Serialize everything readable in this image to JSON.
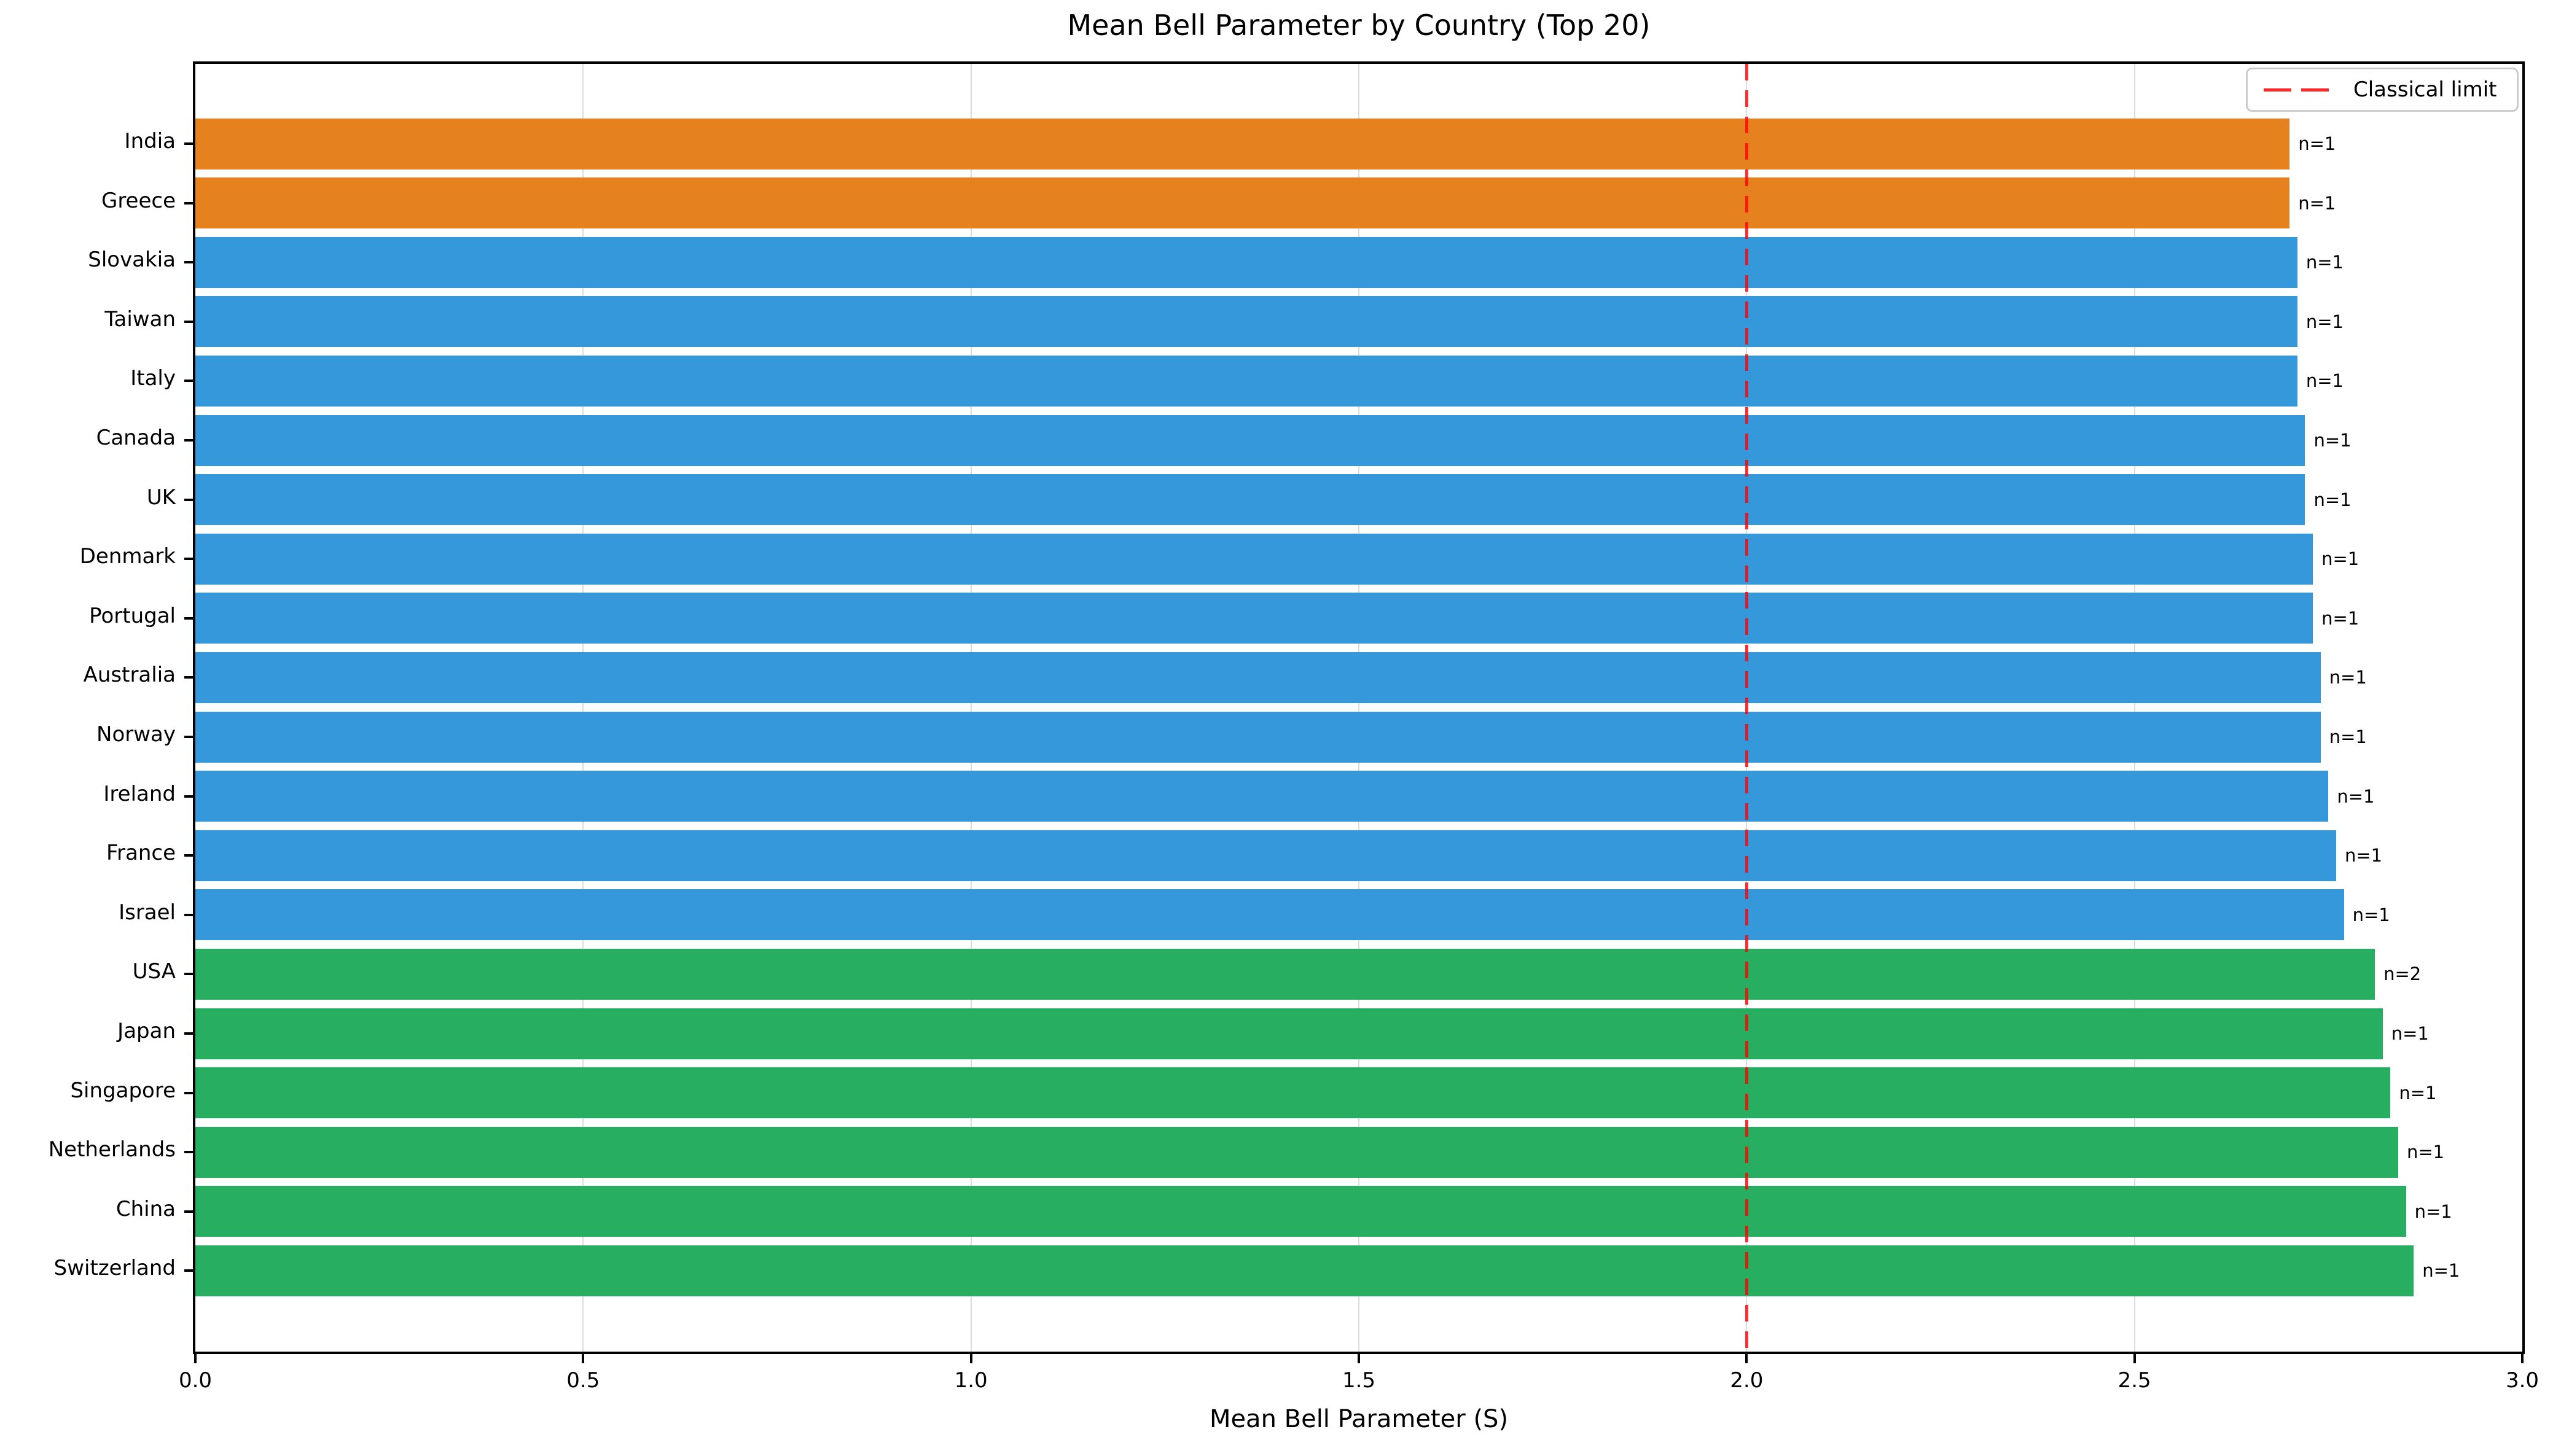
{
  "chart_data": {
    "type": "bar",
    "orientation": "horizontal",
    "title": "Mean Bell Parameter by Country (Top 20)",
    "xlabel": "Mean Bell Parameter (S)",
    "xlim": [
      0,
      3.0
    ],
    "x_ticks": [
      0.0,
      0.5,
      1.0,
      1.5,
      2.0,
      2.5,
      3.0
    ],
    "x_tick_labels": [
      "0.0",
      "0.5",
      "1.0",
      "1.5",
      "2.0",
      "2.5",
      "3.0"
    ],
    "grid": "vertical light-gray gridlines at each x tick",
    "legend_position": "upper right",
    "legend_label": "Classical limit",
    "classical_limit_x": 2.0,
    "sort_order": "ascending top to bottom",
    "rows": [
      {
        "country": "India",
        "value": 2.7,
        "n_label": "n=1",
        "color": "orange"
      },
      {
        "country": "Greece",
        "value": 2.7,
        "n_label": "n=1",
        "color": "orange"
      },
      {
        "country": "Slovakia",
        "value": 2.71,
        "n_label": "n=1",
        "color": "blue"
      },
      {
        "country": "Taiwan",
        "value": 2.71,
        "n_label": "n=1",
        "color": "blue"
      },
      {
        "country": "Italy",
        "value": 2.71,
        "n_label": "n=1",
        "color": "blue"
      },
      {
        "country": "Canada",
        "value": 2.72,
        "n_label": "n=1",
        "color": "blue"
      },
      {
        "country": "UK",
        "value": 2.72,
        "n_label": "n=1",
        "color": "blue"
      },
      {
        "country": "Denmark",
        "value": 2.73,
        "n_label": "n=1",
        "color": "blue"
      },
      {
        "country": "Portugal",
        "value": 2.73,
        "n_label": "n=1",
        "color": "blue"
      },
      {
        "country": "Australia",
        "value": 2.74,
        "n_label": "n=1",
        "color": "blue"
      },
      {
        "country": "Norway",
        "value": 2.74,
        "n_label": "n=1",
        "color": "blue"
      },
      {
        "country": "Ireland",
        "value": 2.75,
        "n_label": "n=1",
        "color": "blue"
      },
      {
        "country": "France",
        "value": 2.76,
        "n_label": "n=1",
        "color": "blue"
      },
      {
        "country": "Israel",
        "value": 2.77,
        "n_label": "n=1",
        "color": "blue"
      },
      {
        "country": "USA",
        "value": 2.81,
        "n_label": "n=2",
        "color": "green"
      },
      {
        "country": "Japan",
        "value": 2.82,
        "n_label": "n=1",
        "color": "green"
      },
      {
        "country": "Singapore",
        "value": 2.83,
        "n_label": "n=1",
        "color": "green"
      },
      {
        "country": "Netherlands",
        "value": 2.84,
        "n_label": "n=1",
        "color": "green"
      },
      {
        "country": "China",
        "value": 2.85,
        "n_label": "n=1",
        "color": "green"
      },
      {
        "country": "Switzerland",
        "value": 2.86,
        "n_label": "n=1",
        "color": "green"
      }
    ],
    "colors": {
      "orange": "#e5821f",
      "blue": "#3498db",
      "green": "#27ae60",
      "limit": "#ff0000",
      "grid": "#dcdcdc",
      "legend_border": "#cccccc",
      "spine": "#000000"
    }
  }
}
